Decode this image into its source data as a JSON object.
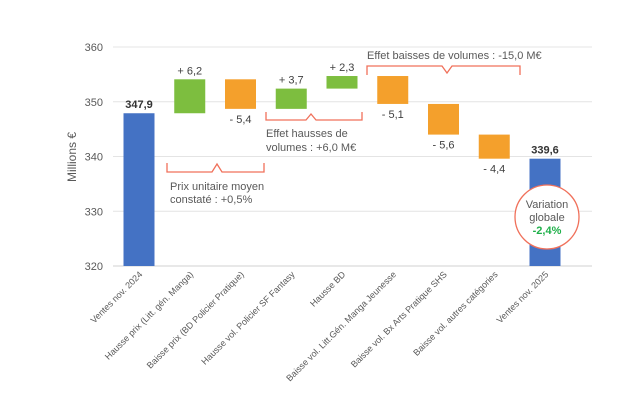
{
  "chart_data": {
    "type": "waterfall",
    "ylabel": "Millions €",
    "ylim": [
      320,
      360
    ],
    "yticks": [
      320,
      330,
      340,
      350,
      360
    ],
    "grid": true,
    "colors": {
      "total": "#4472C4",
      "increase": "#7DBE3F",
      "decrease": "#F4A02C",
      "annotation": "#F0705A",
      "highlight": "#1FB04A"
    },
    "categories": [
      "Ventes nov. 2024",
      "Hausse prix (Litt. gén. Manga)",
      "Baisse prix (BD Policier Pratique)",
      "Hausse vol. Policier SF Fantasy",
      "Hausse BD",
      "Baisse vol. Litt.Gén. Manga Jeunesse",
      "Baisse vol. Bx Arts Pratique SHS",
      "Baisse vol. autres catégories",
      "Ventes nov. 2025"
    ],
    "kinds": [
      "total",
      "increase",
      "decrease",
      "increase",
      "increase",
      "decrease",
      "decrease",
      "decrease",
      "total"
    ],
    "values": [
      347.9,
      6.2,
      -5.4,
      3.7,
      2.3,
      -5.1,
      -5.6,
      -4.4,
      339.6
    ],
    "data_labels": [
      "347,9",
      "+ 6,2",
      "- 5,4",
      "+ 3,7",
      "+ 2,3",
      "- 5,1",
      "- 5,6",
      "- 4,4",
      "339,6"
    ],
    "annotations": {
      "price_effect": [
        "Prix unitaire moyen",
        "constaté : +0,5%"
      ],
      "volume_increase": [
        "Effet hausses de",
        "volumes : +6,0 M€"
      ],
      "volume_decrease": "Effet baisses de volumes : -15,0 M€",
      "global_variation": [
        "Variation",
        "globale",
        "-2,4%"
      ]
    }
  }
}
